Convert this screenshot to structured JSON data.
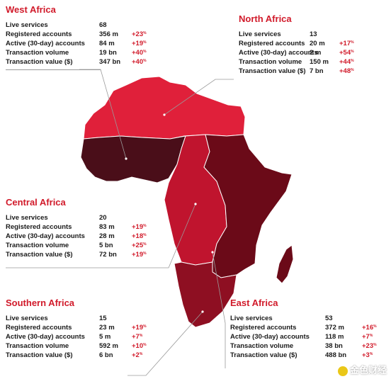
{
  "regions": [
    {
      "id": "west",
      "title": "West Africa",
      "color": "#4a0e19",
      "stats": [
        {
          "label": "Live services",
          "value": "68",
          "change": ""
        },
        {
          "label": "Registered accounts",
          "value": "356 m",
          "change": "+23"
        },
        {
          "label": "Active (30-day) accounts",
          "value": "84 m",
          "change": "+19"
        },
        {
          "label": "Transaction volume",
          "value": "19 bn",
          "change": "+40"
        },
        {
          "label": "Transaction value ($)",
          "value": "347 bn",
          "change": "+40"
        }
      ]
    },
    {
      "id": "north",
      "title": "North Africa",
      "color": "#e0203a",
      "stats": [
        {
          "label": "Live services",
          "value": "13",
          "change": ""
        },
        {
          "label": "Registered accounts",
          "value": "20 m",
          "change": "+17"
        },
        {
          "label": "Active (30-day) accounts",
          "value": "2 m",
          "change": "+54"
        },
        {
          "label": "Transaction volume",
          "value": "150 m",
          "change": "+44"
        },
        {
          "label": "Transaction value ($)",
          "value": "7 bn",
          "change": "+48"
        }
      ]
    },
    {
      "id": "central",
      "title": "Central Africa",
      "color": "#c0142e",
      "stats": [
        {
          "label": "Live services",
          "value": "20",
          "change": ""
        },
        {
          "label": "Registered accounts",
          "value": "83 m",
          "change": "+19"
        },
        {
          "label": "Active (30-day) accounts",
          "value": "28 m",
          "change": "+18"
        },
        {
          "label": "Transaction volume",
          "value": "5 bn",
          "change": "+25"
        },
        {
          "label": "Transaction value ($)",
          "value": "72 bn",
          "change": "+19"
        }
      ]
    },
    {
      "id": "southern",
      "title": "Southern Africa",
      "color": "#8e0f22",
      "stats": [
        {
          "label": "Live services",
          "value": "15",
          "change": ""
        },
        {
          "label": "Registered accounts",
          "value": "23 m",
          "change": "+19"
        },
        {
          "label": "Active (30-day) accounts",
          "value": "5 m",
          "change": "+7"
        },
        {
          "label": "Transaction volume",
          "value": "592 m",
          "change": "+10"
        },
        {
          "label": "Transaction value ($)",
          "value": "6 bn",
          "change": "+2"
        }
      ]
    },
    {
      "id": "east",
      "title": "East Africa",
      "color": "#6b0a18",
      "stats": [
        {
          "label": "Live services",
          "value": "53",
          "change": ""
        },
        {
          "label": "Registered accounts",
          "value": "372 m",
          "change": "+16"
        },
        {
          "label": "Active (30-day) accounts",
          "value": "118 m",
          "change": "+7"
        },
        {
          "label": "Transaction volume",
          "value": "38 bn",
          "change": "+23"
        },
        {
          "label": "Transaction value ($)",
          "value": "488 bn",
          "change": "+3"
        }
      ]
    }
  ],
  "percent_symbol": "%",
  "watermark": "金色财经"
}
